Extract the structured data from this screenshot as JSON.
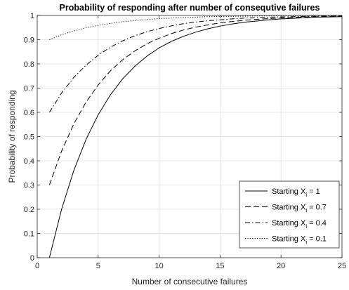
{
  "chart_data": {
    "type": "line",
    "title": "Probability of responding after number of consequtive failures",
    "xlabel": "Number of consecutive failures",
    "ylabel": "Probability of responding",
    "xlim": [
      0,
      25
    ],
    "ylim": [
      0,
      1
    ],
    "xticks": [
      "0",
      "5",
      "10",
      "15",
      "20",
      "25"
    ],
    "yticks": [
      "0",
      "0.1",
      "0.2",
      "0.3",
      "0.4",
      "0.5",
      "0.6",
      "0.7",
      "0.8",
      "0.9",
      "1"
    ],
    "grid": true,
    "legend_position": "bottom-right",
    "x": [
      1,
      2,
      3,
      4,
      5,
      6,
      7,
      8,
      9,
      10,
      11,
      12,
      13,
      14,
      15,
      16,
      17,
      18,
      19,
      20,
      21,
      22,
      23,
      24,
      25
    ],
    "series": [
      {
        "legend_prefix": "Starting X",
        "legend_sub": "i",
        "legend_suffix": " = 1",
        "line_style": "solid",
        "values": [
          0,
          0.2,
          0.36,
          0.488,
          0.59,
          0.672,
          0.738,
          0.79,
          0.832,
          0.866,
          0.893,
          0.914,
          0.931,
          0.945,
          0.956,
          0.965,
          0.972,
          0.977,
          0.982,
          0.986,
          0.988,
          0.991,
          0.993,
          0.994,
          0.995
        ]
      },
      {
        "legend_prefix": "Starting X",
        "legend_sub": "i",
        "legend_suffix": " = 0.7",
        "line_style": "dashed",
        "values": [
          0.3,
          0.44,
          0.552,
          0.642,
          0.713,
          0.771,
          0.817,
          0.853,
          0.883,
          0.906,
          0.925,
          0.94,
          0.952,
          0.961,
          0.969,
          0.975,
          0.98,
          0.984,
          0.987,
          0.99,
          0.992,
          0.994,
          0.995,
          0.996,
          0.997
        ]
      },
      {
        "legend_prefix": "Starting X",
        "legend_sub": "i",
        "legend_suffix": " = 0.4",
        "line_style": "dash-dot",
        "values": [
          0.6,
          0.68,
          0.744,
          0.795,
          0.836,
          0.869,
          0.895,
          0.916,
          0.933,
          0.946,
          0.957,
          0.966,
          0.973,
          0.978,
          0.982,
          0.986,
          0.989,
          0.991,
          0.993,
          0.994,
          0.995,
          0.996,
          0.997,
          0.998,
          0.998
        ]
      },
      {
        "legend_prefix": "Starting X",
        "legend_sub": "i",
        "legend_suffix": " = 0.1",
        "line_style": "dotted",
        "values": [
          0.9,
          0.92,
          0.936,
          0.949,
          0.959,
          0.967,
          0.974,
          0.979,
          0.983,
          0.987,
          0.989,
          0.991,
          0.993,
          0.995,
          0.996,
          0.996,
          0.997,
          0.998,
          0.998,
          0.999,
          0.999,
          0.999,
          0.999,
          0.999,
          1.0
        ]
      }
    ]
  }
}
